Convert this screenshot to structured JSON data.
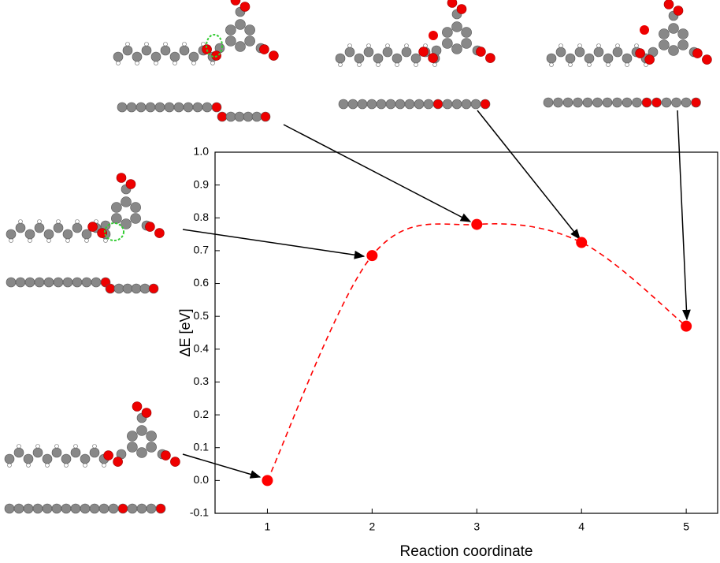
{
  "chart_data": {
    "type": "scatter",
    "x_label": "Reaction coordinate",
    "y_label": "ΔE [eV]",
    "x": [
      1,
      2,
      3,
      4,
      5
    ],
    "values": [
      0.0,
      0.685,
      0.78,
      0.725,
      0.47
    ],
    "color": "#ff0000",
    "line_style": "dashed",
    "xlim": [
      0.5,
      5.3
    ],
    "ylim": [
      -0.1,
      1.0
    ],
    "xticks": [
      1,
      2,
      3,
      4,
      5
    ],
    "yticks": [
      -0.1,
      {
        "value": 0,
        "label": "0.0"
      },
      0.1,
      0.2,
      0.3,
      0.4,
      0.5,
      0.6,
      0.7,
      0.8,
      0.9,
      {
        "value": 1,
        "label": "1.0"
      }
    ],
    "grid": false
  }
}
